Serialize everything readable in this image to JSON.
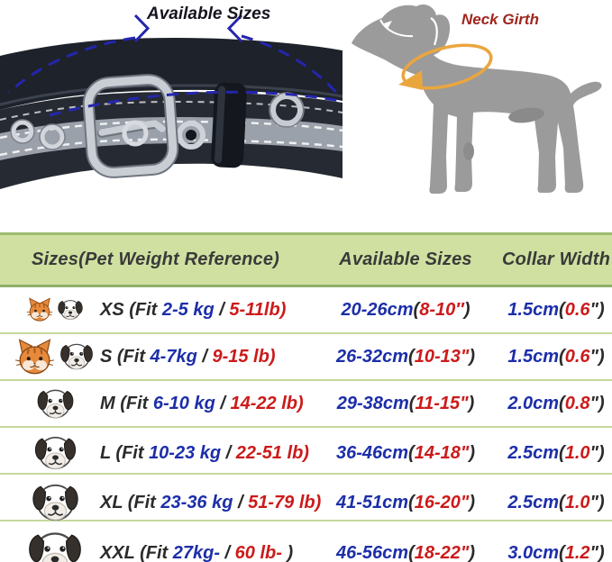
{
  "hero": {
    "available_sizes_label": "Available Sizes",
    "neck_girth_label": "Neck Girth"
  },
  "colors": {
    "dark": "#2b2b2b",
    "blue": "#1c2ea9",
    "red": "#cc1a1a",
    "header_green": "#cfe0a0",
    "divider_green": "#c6d99b",
    "dash_blue": "#2426ae",
    "girth_orange": "#eaa63e",
    "dog_gray": "#9b9b9b"
  },
  "table": {
    "headers": [
      "Sizes(Pet Weight Reference)",
      "Available Sizes",
      "Collar Width"
    ],
    "rows": [
      {
        "size_code": "XS",
        "icons": [
          {
            "name": "cat-icon",
            "size": 30
          },
          {
            "name": "dog-icon",
            "size": 32
          }
        ],
        "label_segments": [
          [
            "XS (Fit ",
            "dark"
          ],
          [
            "2-5 kg",
            "blue"
          ],
          [
            " / ",
            "dark"
          ],
          [
            "5-11lb)",
            "red"
          ]
        ],
        "available_segments": [
          [
            "20-26cm",
            "blue"
          ],
          [
            "(",
            "dark"
          ],
          [
            "8-10″",
            "red"
          ],
          [
            ")",
            "dark"
          ]
        ],
        "width_segments": [
          [
            "1.5cm",
            "blue"
          ],
          [
            "(",
            "dark"
          ],
          [
            "0.6",
            "red"
          ],
          [
            "\")",
            "dark"
          ]
        ]
      },
      {
        "size_code": "S",
        "icons": [
          {
            "name": "cat-icon",
            "size": 45
          },
          {
            "name": "dog-icon",
            "size": 42
          }
        ],
        "label_segments": [
          [
            "S (Fit ",
            "dark"
          ],
          [
            "4-7kg",
            "blue"
          ],
          [
            " / ",
            "dark"
          ],
          [
            "9-15 lb)",
            "red"
          ]
        ],
        "available_segments": [
          [
            "26-32cm",
            "blue"
          ],
          [
            "(",
            "dark"
          ],
          [
            "10-13\"",
            "red"
          ],
          [
            ")",
            "dark"
          ]
        ],
        "width_segments": [
          [
            "1.5cm",
            "blue"
          ],
          [
            "(",
            "dark"
          ],
          [
            "0.6",
            "red"
          ],
          [
            "\")",
            "dark"
          ]
        ]
      },
      {
        "size_code": "M",
        "icons": [
          {
            "name": "dog-icon",
            "size": 47
          }
        ],
        "label_segments": [
          [
            "M (Fit ",
            "dark"
          ],
          [
            "6-10 kg",
            "blue"
          ],
          [
            " / ",
            "dark"
          ],
          [
            "14-22 lb)",
            "red"
          ]
        ],
        "available_segments": [
          [
            "29-38cm",
            "blue"
          ],
          [
            "(",
            "dark"
          ],
          [
            "11-15\"",
            "red"
          ],
          [
            ")",
            "dark"
          ]
        ],
        "width_segments": [
          [
            "2.0cm",
            "blue"
          ],
          [
            "(",
            "dark"
          ],
          [
            "0.8",
            "red"
          ],
          [
            "\")",
            "dark"
          ]
        ]
      },
      {
        "size_code": "L",
        "icons": [
          {
            "name": "dog-icon",
            "size": 53
          }
        ],
        "label_segments": [
          [
            "L (Fit ",
            "dark"
          ],
          [
            "10-23 kg",
            "blue"
          ],
          [
            " / ",
            "dark"
          ],
          [
            "22-51 lb)",
            "red"
          ]
        ],
        "available_segments": [
          [
            "36-46cm",
            "blue"
          ],
          [
            "(",
            "dark"
          ],
          [
            "14-18\"",
            "red"
          ],
          [
            ")",
            "dark"
          ]
        ],
        "width_segments": [
          [
            "2.5cm",
            "blue"
          ],
          [
            "(",
            "dark"
          ],
          [
            "1.0",
            "red"
          ],
          [
            "\")",
            "dark"
          ]
        ]
      },
      {
        "size_code": "XL",
        "icons": [
          {
            "name": "dog-icon",
            "size": 59
          }
        ],
        "label_segments": [
          [
            "XL (Fit ",
            "dark"
          ],
          [
            "23-36 kg",
            "blue"
          ],
          [
            " / ",
            "dark"
          ],
          [
            "51-79 lb)",
            "red"
          ]
        ],
        "available_segments": [
          [
            "41-51cm",
            "blue"
          ],
          [
            "(",
            "dark"
          ],
          [
            "16-20\"",
            "red"
          ],
          [
            ")",
            "dark"
          ]
        ],
        "width_segments": [
          [
            "2.5cm",
            "blue"
          ],
          [
            "(",
            "dark"
          ],
          [
            "1.0",
            "red"
          ],
          [
            "\")",
            "dark"
          ]
        ]
      },
      {
        "size_code": "XXL",
        "icons": [
          {
            "name": "dog-icon",
            "size": 68
          }
        ],
        "label_segments": [
          [
            "XXL (Fit ",
            "dark"
          ],
          [
            "27kg-",
            "blue"
          ],
          [
            "  / ",
            "dark"
          ],
          [
            "60 lb-",
            "red"
          ],
          [
            " )",
            "dark"
          ]
        ],
        "available_segments": [
          [
            "46-56cm",
            "blue"
          ],
          [
            "(",
            "dark"
          ],
          [
            "18-22\"",
            "red"
          ],
          [
            ")",
            "dark"
          ]
        ],
        "width_segments": [
          [
            "3.0cm",
            "blue"
          ],
          [
            "(",
            "dark"
          ],
          [
            "1.2",
            "red"
          ],
          [
            "\")",
            "dark"
          ]
        ]
      }
    ]
  }
}
